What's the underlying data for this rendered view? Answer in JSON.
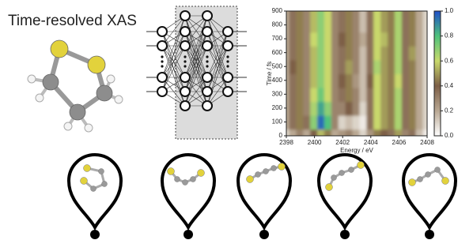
{
  "title": "Time-resolved XAS",
  "chart_data": {
    "type": "heatmap",
    "x_label": "Energy / eV",
    "y_label": "Time / fs",
    "x": [
      2398,
      2398.5,
      2399,
      2399.5,
      2400,
      2400.5,
      2401,
      2401.5,
      2402,
      2402.5,
      2403,
      2403.5,
      2404,
      2404.5,
      2405,
      2405.5,
      2406,
      2406.5,
      2407,
      2407.5,
      2408
    ],
    "y": [
      0,
      100,
      200,
      300,
      400,
      500,
      600,
      700,
      800,
      900
    ],
    "values": [
      [
        0.1,
        0.2,
        0.3,
        0.2,
        0.4,
        0.55,
        0.45,
        0.2,
        0.25,
        0.3,
        0.2,
        0.1,
        0.25,
        0.45,
        0.4,
        0.35,
        0.5,
        0.3,
        0.35,
        0.15,
        0.05
      ],
      [
        0.2,
        0.35,
        0.45,
        0.35,
        0.7,
        0.95,
        0.8,
        0.3,
        0.1,
        0.15,
        0.1,
        0.05,
        0.35,
        0.6,
        0.5,
        0.45,
        0.65,
        0.35,
        0.45,
        0.2,
        0.1
      ],
      [
        0.2,
        0.35,
        0.45,
        0.3,
        0.65,
        0.85,
        0.7,
        0.3,
        0.3,
        0.4,
        0.3,
        0.1,
        0.35,
        0.6,
        0.5,
        0.45,
        0.65,
        0.35,
        0.45,
        0.2,
        0.1
      ],
      [
        0.2,
        0.35,
        0.45,
        0.3,
        0.6,
        0.75,
        0.6,
        0.3,
        0.35,
        0.45,
        0.3,
        0.15,
        0.35,
        0.6,
        0.5,
        0.45,
        0.65,
        0.35,
        0.45,
        0.2,
        0.1
      ],
      [
        0.2,
        0.35,
        0.45,
        0.3,
        0.55,
        0.7,
        0.6,
        0.3,
        0.4,
        0.45,
        0.25,
        0.15,
        0.4,
        0.6,
        0.5,
        0.45,
        0.6,
        0.35,
        0.45,
        0.2,
        0.1
      ],
      [
        0.2,
        0.4,
        0.45,
        0.3,
        0.55,
        0.7,
        0.6,
        0.3,
        0.35,
        0.5,
        0.3,
        0.15,
        0.35,
        0.65,
        0.5,
        0.45,
        0.65,
        0.35,
        0.45,
        0.2,
        0.1
      ],
      [
        0.2,
        0.35,
        0.45,
        0.3,
        0.55,
        0.7,
        0.6,
        0.3,
        0.35,
        0.45,
        0.3,
        0.15,
        0.35,
        0.6,
        0.5,
        0.45,
        0.65,
        0.35,
        0.5,
        0.2,
        0.1
      ],
      [
        0.2,
        0.35,
        0.45,
        0.3,
        0.6,
        0.7,
        0.6,
        0.3,
        0.4,
        0.45,
        0.3,
        0.2,
        0.35,
        0.6,
        0.55,
        0.45,
        0.65,
        0.35,
        0.45,
        0.2,
        0.1
      ],
      [
        0.2,
        0.35,
        0.45,
        0.3,
        0.55,
        0.7,
        0.6,
        0.3,
        0.35,
        0.45,
        0.3,
        0.15,
        0.35,
        0.6,
        0.5,
        0.45,
        0.65,
        0.35,
        0.45,
        0.2,
        0.1
      ],
      [
        0.2,
        0.35,
        0.45,
        0.3,
        0.55,
        0.7,
        0.6,
        0.3,
        0.35,
        0.45,
        0.3,
        0.15,
        0.35,
        0.6,
        0.5,
        0.45,
        0.65,
        0.35,
        0.45,
        0.2,
        0.1
      ]
    ],
    "xlim": [
      2398,
      2408
    ],
    "xticks": [
      2398,
      2400,
      2402,
      2404,
      2406,
      2408
    ],
    "ylim": [
      0,
      900
    ],
    "yticks": [
      0,
      100,
      200,
      300,
      400,
      500,
      600,
      700,
      800,
      900
    ],
    "zlim": [
      0,
      1
    ],
    "zticks": [
      {
        "value": 0,
        "label": "0.0"
      },
      0.2,
      0.4,
      0.6,
      0.8,
      {
        "value": 1,
        "label": "1.0"
      }
    ],
    "colormap": [
      "#ffffff",
      "#b9a893",
      "#7d5f47",
      "#c9d96c",
      "#4fc27c",
      "#1f4fc9"
    ]
  }
}
